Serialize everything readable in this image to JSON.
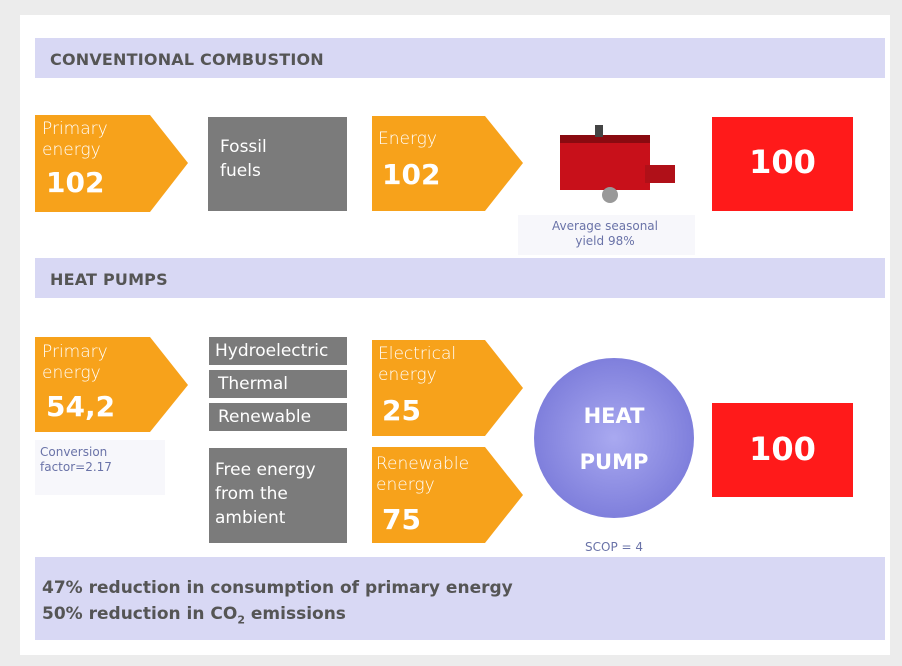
{
  "sections": [
    {
      "title": "CONVENTIONAL COMBUSTION"
    },
    {
      "title": "HEAT PUMPS"
    }
  ],
  "combustion": {
    "primary": {
      "label": "Primary energy",
      "value": "102"
    },
    "source": "Fossil fuels",
    "energy": {
      "label": "Energy",
      "value": "102"
    },
    "caption": "Average seasonal yield 98%",
    "result": "100"
  },
  "heat_pumps": {
    "primary": {
      "label": "Primary energy",
      "value": "54,2"
    },
    "caption": "Conversion factor=2.17",
    "sources": [
      "Hydroelectric",
      "Thermal",
      "Renewable"
    ],
    "free": "Free energy from the ambient",
    "electrical": {
      "label": "Electrical energy",
      "value": "25"
    },
    "renewable": {
      "label": "Renewable energy",
      "value": "75"
    },
    "pump": "HEAT PUMP",
    "scop": "SCOP = 4",
    "result": "100"
  },
  "summary": {
    "line1": "47% reduction in consumption of primary energy",
    "line2": {
      "before": "50% reduction in CO",
      "sub": "2",
      "after": " emissions"
    }
  }
}
